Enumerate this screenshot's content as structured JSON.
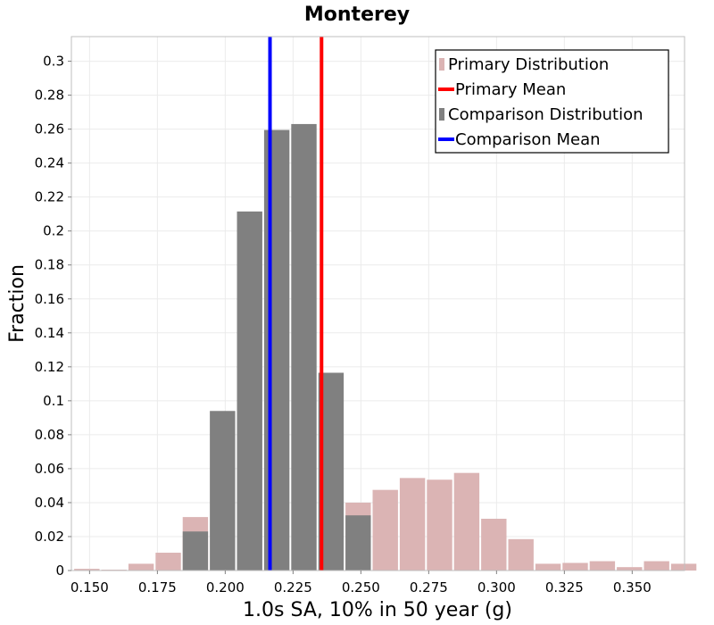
{
  "chart_data": {
    "type": "bar",
    "title": "Monterey",
    "xlabel": "1.0s SA, 10% in 50 year (g)",
    "ylabel": "Fraction",
    "xlim": [
      0.1433,
      0.3693
    ],
    "ylim": [
      0,
      0.3145
    ],
    "bin_width": 0.01,
    "x_ticks": [
      0.15,
      0.175,
      0.2,
      0.225,
      0.25,
      0.275,
      0.3,
      0.325,
      0.35
    ],
    "x_tick_labels": [
      "0.150",
      "0.175",
      "0.200",
      "0.225",
      "0.250",
      "0.275",
      "0.300",
      "0.325",
      "0.350"
    ],
    "y_ticks": [
      0,
      0.02,
      0.04,
      0.06,
      0.08,
      0.1,
      0.12,
      0.14,
      0.16,
      0.18,
      0.2,
      0.22,
      0.24,
      0.26,
      0.28,
      0.3
    ],
    "y_tick_labels": [
      "0",
      "0.02",
      "0.04",
      "0.06",
      "0.08",
      "0.1",
      "0.12",
      "0.14",
      "0.16",
      "0.18",
      "0.2",
      "0.22",
      "0.24",
      "0.26",
      "0.28",
      "0.3"
    ],
    "series": [
      {
        "name": "Primary Distribution",
        "color": "#dbb4b4",
        "bins": [
          {
            "x": 0.149,
            "value": 0.001
          },
          {
            "x": 0.159,
            "value": 0.0005
          },
          {
            "x": 0.169,
            "value": 0.004
          },
          {
            "x": 0.179,
            "value": 0.0105
          },
          {
            "x": 0.189,
            "value": 0.0315
          },
          {
            "x": 0.249,
            "value": 0.04
          },
          {
            "x": 0.259,
            "value": 0.0475
          },
          {
            "x": 0.269,
            "value": 0.0545
          },
          {
            "x": 0.279,
            "value": 0.0535
          },
          {
            "x": 0.289,
            "value": 0.0575
          },
          {
            "x": 0.299,
            "value": 0.0305
          },
          {
            "x": 0.309,
            "value": 0.0185
          },
          {
            "x": 0.319,
            "value": 0.004
          },
          {
            "x": 0.329,
            "value": 0.0045
          },
          {
            "x": 0.339,
            "value": 0.0055
          },
          {
            "x": 0.349,
            "value": 0.002
          },
          {
            "x": 0.359,
            "value": 0.0055
          },
          {
            "x": 0.369,
            "value": 0.004
          }
        ]
      },
      {
        "name": "Comparison Distribution",
        "color": "#808080",
        "bins": [
          {
            "x": 0.189,
            "value": 0.023
          },
          {
            "x": 0.199,
            "value": 0.094
          },
          {
            "x": 0.209,
            "value": 0.2115
          },
          {
            "x": 0.219,
            "value": 0.2595
          },
          {
            "x": 0.229,
            "value": 0.263
          },
          {
            "x": 0.239,
            "value": 0.1165
          },
          {
            "x": 0.249,
            "value": 0.0325
          }
        ]
      }
    ],
    "means": [
      {
        "name": "Primary Mean",
        "x": 0.2355,
        "color": "#ff0000"
      },
      {
        "name": "Comparison Mean",
        "x": 0.2165,
        "color": "#0000ff"
      }
    ],
    "legend": {
      "position": "top-right",
      "entries": [
        {
          "label": "Primary Distribution",
          "kind": "bar",
          "color": "#dbb4b4"
        },
        {
          "label": "Primary Mean",
          "kind": "line",
          "color": "#ff0000"
        },
        {
          "label": "Comparison Distribution",
          "kind": "bar",
          "color": "#808080"
        },
        {
          "label": "Comparison Mean",
          "kind": "line",
          "color": "#0000ff"
        }
      ]
    },
    "grid": true
  }
}
